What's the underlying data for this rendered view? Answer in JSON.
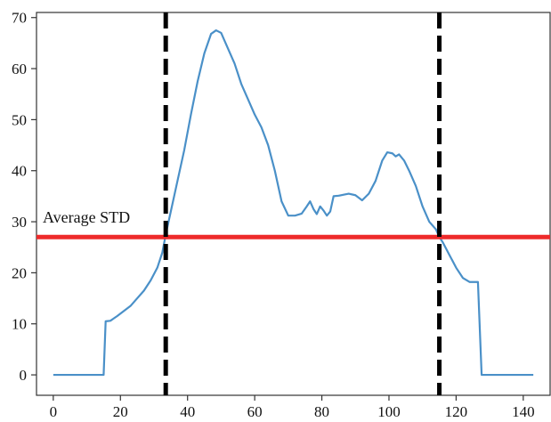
{
  "chart_data": {
    "type": "line",
    "title": "",
    "xlabel": "",
    "ylabel": "",
    "xlim": [
      -5,
      148
    ],
    "ylim": [
      -4,
      71
    ],
    "x_ticks": [
      0,
      20,
      40,
      60,
      80,
      100,
      120,
      140
    ],
    "y_ticks": [
      0,
      10,
      20,
      30,
      40,
      50,
      60,
      70
    ],
    "grid": false,
    "legend": "none",
    "series": [
      {
        "color": "#4a90c8",
        "points": [
          [
            0,
            0
          ],
          [
            15,
            0
          ],
          [
            15.6,
            10.5
          ],
          [
            17,
            10.6
          ],
          [
            19,
            11.5
          ],
          [
            21,
            12.5
          ],
          [
            23,
            13.5
          ],
          [
            25,
            15
          ],
          [
            27,
            16.5
          ],
          [
            29,
            18.5
          ],
          [
            31,
            21
          ],
          [
            32.5,
            24
          ],
          [
            33.5,
            27.5
          ],
          [
            35,
            32
          ],
          [
            37,
            38
          ],
          [
            39,
            44
          ],
          [
            41,
            51
          ],
          [
            43,
            57.5
          ],
          [
            45,
            63
          ],
          [
            47,
            66.8
          ],
          [
            48.5,
            67.5
          ],
          [
            50,
            67
          ],
          [
            52,
            64
          ],
          [
            54,
            61
          ],
          [
            56,
            57
          ],
          [
            58,
            54
          ],
          [
            60,
            51
          ],
          [
            62,
            48.5
          ],
          [
            64,
            45
          ],
          [
            66,
            40
          ],
          [
            68,
            34
          ],
          [
            70,
            31.2
          ],
          [
            72,
            31.2
          ],
          [
            74,
            31.6
          ],
          [
            75.5,
            33
          ],
          [
            76.5,
            34
          ],
          [
            77.5,
            32.5
          ],
          [
            78.5,
            31.5
          ],
          [
            79.5,
            33
          ],
          [
            80.5,
            32.2
          ],
          [
            81.5,
            31.2
          ],
          [
            82.5,
            32
          ],
          [
            83.5,
            35
          ],
          [
            85,
            35.1
          ],
          [
            86.5,
            35.3
          ],
          [
            88,
            35.5
          ],
          [
            90,
            35.2
          ],
          [
            92,
            34.2
          ],
          [
            94,
            35.5
          ],
          [
            96,
            38
          ],
          [
            98,
            42
          ],
          [
            99.5,
            43.6
          ],
          [
            101,
            43.4
          ],
          [
            102,
            42.8
          ],
          [
            103,
            43.2
          ],
          [
            104.5,
            42
          ],
          [
            106,
            40
          ],
          [
            108,
            37
          ],
          [
            110,
            33
          ],
          [
            112,
            30
          ],
          [
            114,
            28.5
          ],
          [
            115,
            27
          ],
          [
            116,
            26
          ],
          [
            118,
            23.5
          ],
          [
            120,
            21
          ],
          [
            122,
            19
          ],
          [
            124,
            18.2
          ],
          [
            126.5,
            18.2
          ],
          [
            127.6,
            0
          ],
          [
            143,
            0
          ]
        ]
      }
    ],
    "vertical_lines": [
      {
        "x": 33.5,
        "style": "dashed",
        "color": "#000000"
      },
      {
        "x": 115,
        "style": "dashed",
        "color": "#000000"
      }
    ],
    "horizontal_lines": [
      {
        "y": 27,
        "color": "#ee2b2b",
        "label": "Average STD"
      }
    ]
  }
}
